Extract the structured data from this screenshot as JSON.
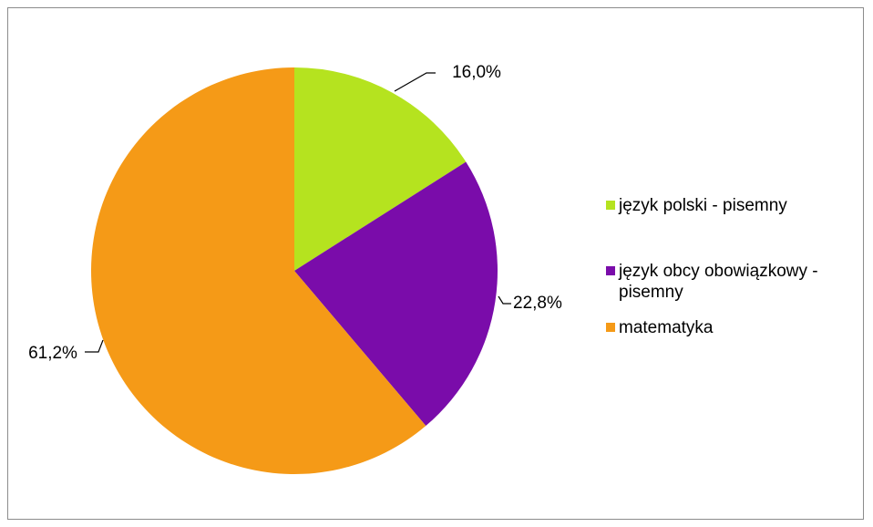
{
  "chart_data": {
    "type": "pie",
    "title": "",
    "start_angle_deg": 0,
    "direction": "clockwise",
    "legend_position": "right",
    "slices": [
      {
        "label": "język polski - pisemny",
        "value": 16.0,
        "data_label": "16,0%",
        "color": "#b5e31f"
      },
      {
        "label": "język obcy obowiązkowy - pisemny",
        "value": 22.8,
        "data_label": "22,8%",
        "color": "#7a0caa"
      },
      {
        "label": "matematyka",
        "value": 61.2,
        "data_label": "61,2%",
        "color": "#f59a17"
      }
    ]
  }
}
